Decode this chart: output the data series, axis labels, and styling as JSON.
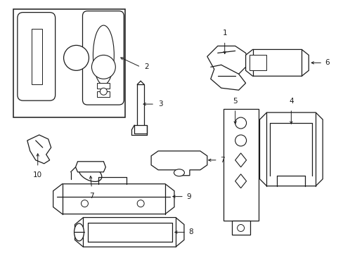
{
  "background_color": "#ffffff",
  "line_color": "#1a1a1a",
  "line_width": 0.9,
  "fig_width": 4.89,
  "fig_height": 3.6,
  "dpi": 100,
  "label_fontsize": 7.5
}
